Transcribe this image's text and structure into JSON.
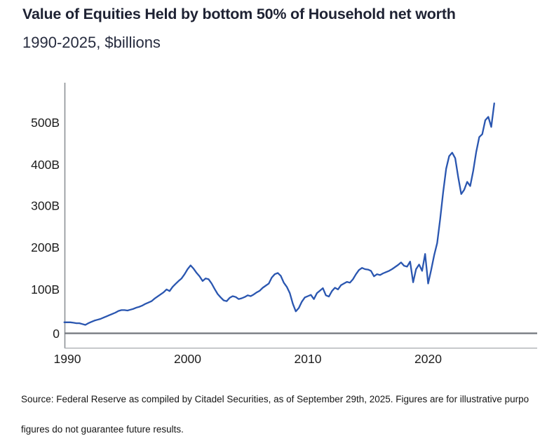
{
  "header": {
    "title": "Value of Equities Held by bottom 50% of Household net worth",
    "subtitle": "1990-2025, $billions"
  },
  "footer": {
    "line1": "Source: Federal Reserve as compiled by Citadel Securities, as of September 29th, 2025. Figures are for illustrative purpo",
    "line2": "figures do not guarantee future results."
  },
  "colors": {
    "line": "#2a56b0",
    "zero_line": "#72767c",
    "bottom_border": "#a6aaae",
    "y_axis": "#8d9196",
    "title_text": "#1e2233",
    "tick_text": "#1d1d1d"
  },
  "chart_data": {
    "type": "line",
    "title": "Value of Equities Held by bottom 50% of Household net worth",
    "subtitle": "1990-2025, $billions",
    "unit": "$billions",
    "grid": false,
    "legend": "none",
    "x_tick_labels": [
      "1990",
      "2000",
      "2010",
      "2020"
    ],
    "x_tick_years": [
      1990,
      2000,
      2010,
      2020
    ],
    "y_tick_labels": [
      "0",
      "100B",
      "200B",
      "300B",
      "400B",
      "500B"
    ],
    "y_tick_values": [
      0,
      100,
      200,
      300,
      400,
      500
    ],
    "xlim": [
      1989.75,
      2029
    ],
    "ylim": [
      -35,
      595
    ],
    "series": [
      {
        "name": "Value of equities held by bottom 50% of households",
        "x_start": 1989.75,
        "x_step": 0.25,
        "values": [
          26,
          26,
          26,
          25,
          24,
          24,
          22,
          20,
          24,
          27,
          30,
          32,
          34,
          37,
          40,
          43,
          46,
          49,
          53,
          55,
          55,
          54,
          56,
          58,
          61,
          63,
          66,
          70,
          73,
          76,
          82,
          87,
          92,
          97,
          104,
          100,
          110,
          117,
          124,
          130,
          140,
          152,
          161,
          153,
          143,
          135,
          124,
          130,
          128,
          118,
          105,
          93,
          85,
          78,
          76,
          84,
          88,
          86,
          81,
          83,
          86,
          90,
          88,
          92,
          97,
          101,
          108,
          113,
          118,
          132,
          140,
          143,
          136,
          120,
          110,
          95,
          70,
          52,
          60,
          75,
          85,
          88,
          91,
          81,
          95,
          101,
          107,
          90,
          87,
          100,
          108,
          104,
          114,
          118,
          122,
          120,
          128,
          140,
          150,
          155,
          152,
          151,
          148,
          135,
          140,
          138,
          142,
          145,
          148,
          152,
          157,
          162,
          168,
          160,
          158,
          170,
          121,
          152,
          163,
          148,
          188,
          118,
          150,
          185,
          214,
          270,
          334,
          390,
          420,
          428,
          415,
          370,
          330,
          340,
          359,
          349,
          385,
          430,
          465,
          472,
          505,
          513,
          489,
          545
        ]
      }
    ]
  }
}
